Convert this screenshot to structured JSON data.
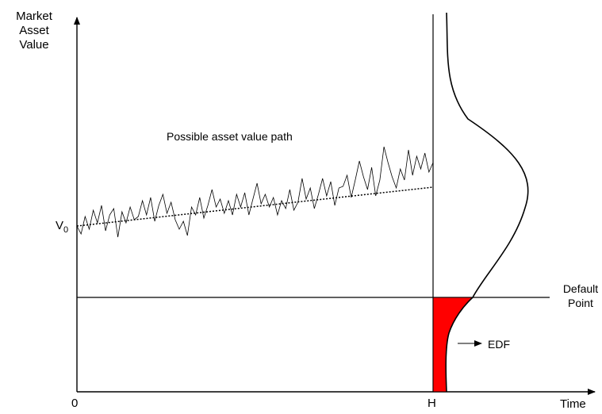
{
  "labels": {
    "y_axis_line1": "Market",
    "y_axis_line2": "Asset",
    "y_axis_line3": "Value",
    "v0_letter": "V",
    "v0_subscript": "0",
    "origin": "0",
    "horizon": "H",
    "x_axis": "Time",
    "default_line1": "Default",
    "default_line2": "Point",
    "path_label": "Possible asset value path",
    "edf_label": "EDF"
  },
  "colors": {
    "edf_fill": "#ff0000",
    "lines": "#000000"
  },
  "path_values": [
    0,
    -10,
    12,
    -4,
    20,
    4,
    26,
    -6,
    14,
    22,
    -14,
    18,
    4,
    24,
    8,
    12,
    32,
    14,
    36,
    6,
    26,
    40,
    16,
    30,
    8,
    -4,
    6,
    -12,
    24,
    14,
    36,
    10,
    26,
    46,
    24,
    34,
    16,
    32,
    14,
    40,
    24,
    42,
    14,
    34,
    54,
    28,
    40,
    24,
    36,
    14,
    32,
    22,
    46,
    20,
    30,
    60,
    34,
    48,
    22,
    40,
    60,
    38,
    56,
    26,
    48,
    50,
    64,
    36,
    58,
    82,
    62,
    46,
    74,
    38,
    58,
    100,
    80,
    62,
    48,
    72,
    58,
    96,
    64,
    88,
    72,
    92,
    68,
    80
  ]
}
